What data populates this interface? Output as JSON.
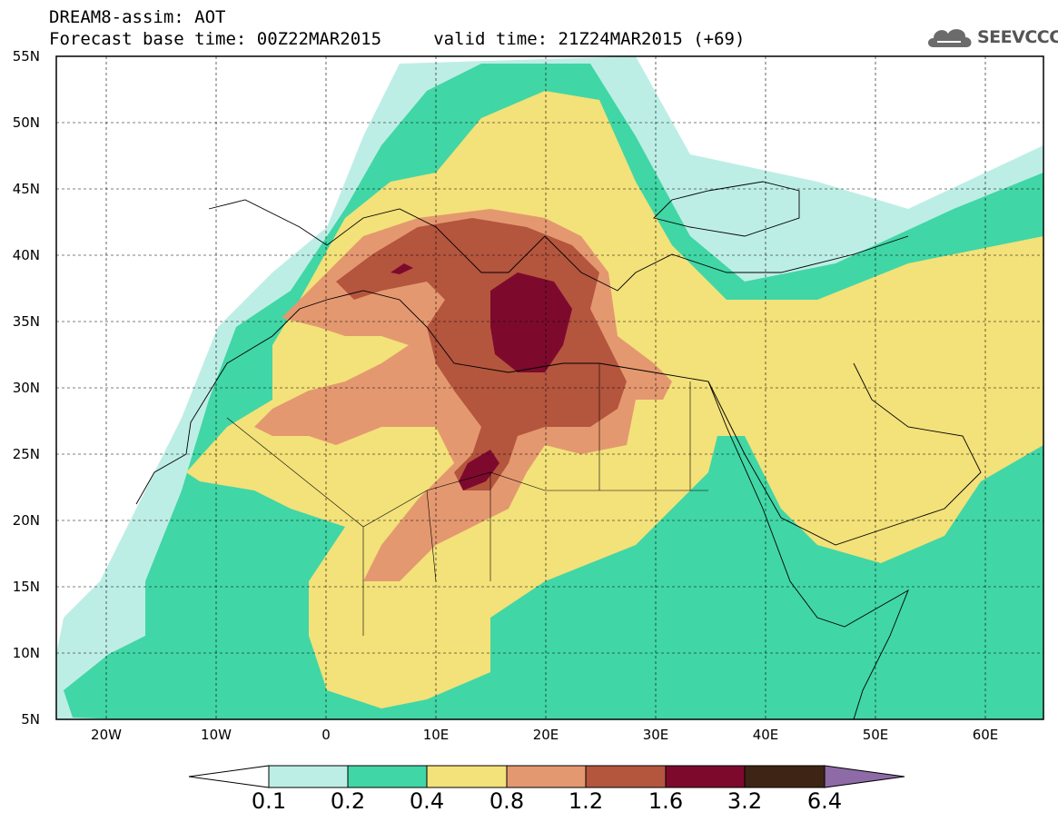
{
  "header": {
    "title": "DREAM8-assim: AOT",
    "line2": "Forecast base time: 00Z22MAR2015     valid time: 21Z24MAR2015 (+69)"
  },
  "logo": {
    "text": "SEEVCCC",
    "icon": "cloud-icon"
  },
  "map": {
    "lat_labels": [
      "55N",
      "50N",
      "45N",
      "40N",
      "35N",
      "30N",
      "25N",
      "20N",
      "15N",
      "10N",
      "5N"
    ],
    "lon_labels": [
      "20W",
      "10W",
      "0",
      "10E",
      "20E",
      "30E",
      "40E",
      "50E",
      "60E"
    ],
    "field": "AOT",
    "dust_maximum_region": "Libya / Central Mediterranean"
  },
  "colorbar": {
    "labels": [
      "0.1",
      "0.2",
      "0.4",
      "0.8",
      "1.2",
      "1.6",
      "3.2",
      "6.4"
    ],
    "colors": [
      "#ffffff",
      "#bdeee6",
      "#41d6a5",
      "#f3e17a",
      "#e49870",
      "#b4553e",
      "#7d0a2d",
      "#3e2414",
      "#8e6aa6"
    ]
  }
}
